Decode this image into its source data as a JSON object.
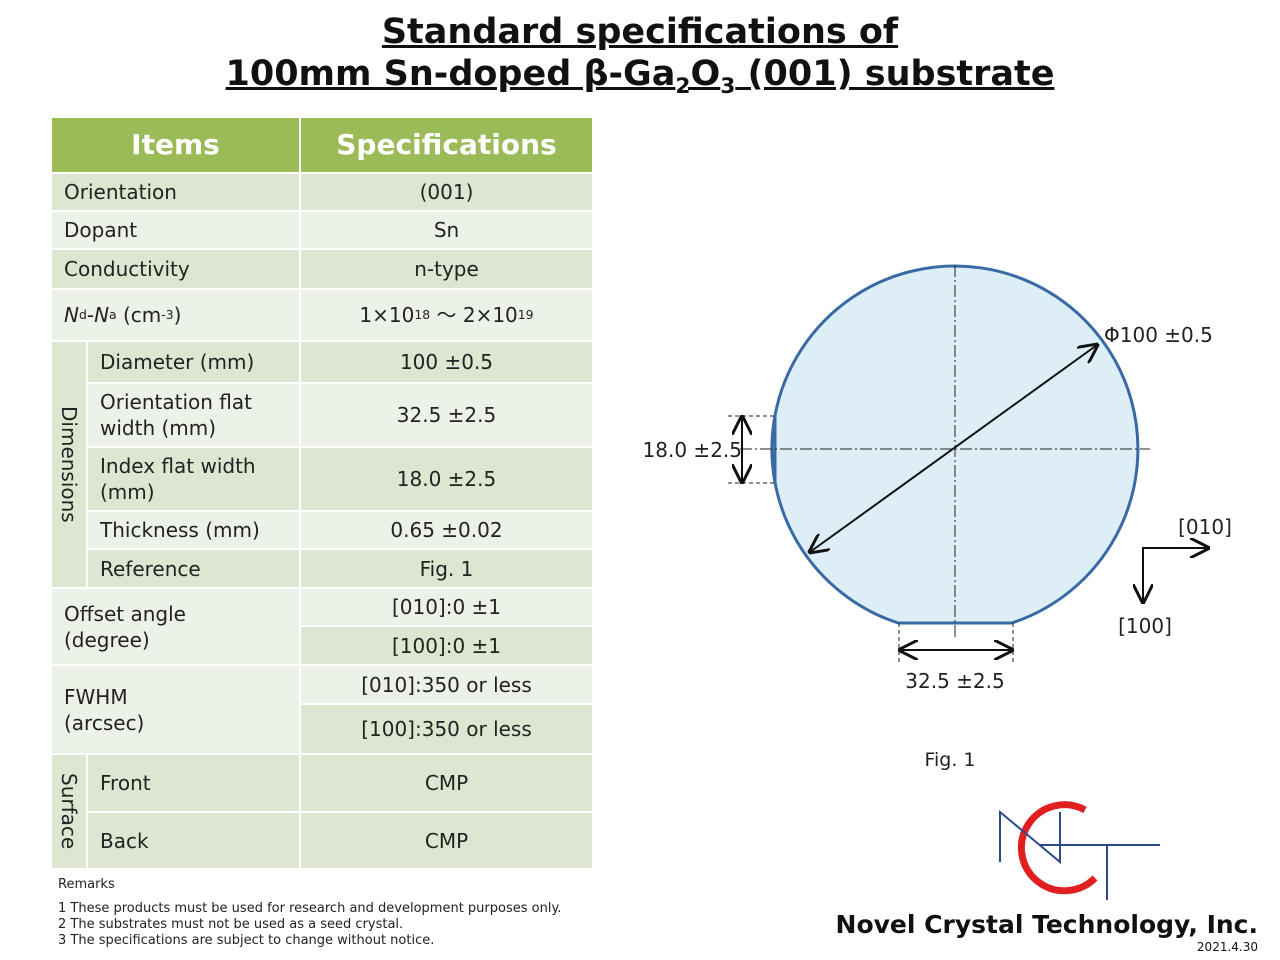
{
  "header": {
    "title_line1": "Standard specifications of",
    "title_line2": [
      "100mm Sn-doped β-Ga",
      "2",
      "O",
      "3",
      " (001) substrate"
    ]
  },
  "table": {
    "header": [
      "Items",
      "Specifications"
    ],
    "rows": [
      [
        "Orientation",
        "(001)"
      ],
      [
        "Dopant",
        "Sn"
      ],
      [
        "Conductivity",
        "n-type"
      ]
    ],
    "carrier": {
      "item": [
        "N",
        "d",
        "-",
        "N",
        "a",
        " (cm",
        "-3",
        ")"
      ],
      "value": [
        "1×10",
        "18",
        " ～ 2×10",
        "19"
      ]
    },
    "dimensions": {
      "label": "Dimensions",
      "rows": [
        [
          "Diameter (mm)",
          "100 ±0.5"
        ],
        [
          "Orientation flat\nwidth (mm)",
          "32.5 ±2.5"
        ],
        [
          "Index flat width\n(mm)",
          "18.0 ±2.5"
        ],
        [
          "Thickness (mm)",
          "0.65 ±0.02"
        ],
        [
          "Reference",
          "Fig. 1"
        ]
      ]
    },
    "offset_angle": {
      "item": "Offset angle\n(degree)",
      "values": [
        "[010]:0 ±1",
        "[100]:0 ±1"
      ]
    },
    "fwhm": {
      "item": "FWHM\n(arcsec)",
      "values": [
        "[010]:350 or less",
        "[100]:350 or less"
      ]
    },
    "surface": {
      "label": "Surface",
      "rows": [
        [
          "Front",
          "CMP"
        ],
        [
          "Back",
          "CMP"
        ]
      ]
    }
  },
  "remarks": {
    "title": "Remarks",
    "items": [
      "1 These products must be used for research and development purposes only.",
      "2 The substrates must not be used as a seed crystal.",
      "3 The specifications are subject to change without notice."
    ]
  },
  "figure": {
    "diameter": "Φ100 ±0.5",
    "index_flat": "18.0 ±2.5",
    "orientation_flat": "32.5 ±2.5",
    "dir_x": "[010]",
    "dir_y": "[100]",
    "caption": "Fig. 1"
  },
  "footer": {
    "company": "Novel Crystal Technology, Inc.",
    "date": "2021.4.30"
  }
}
